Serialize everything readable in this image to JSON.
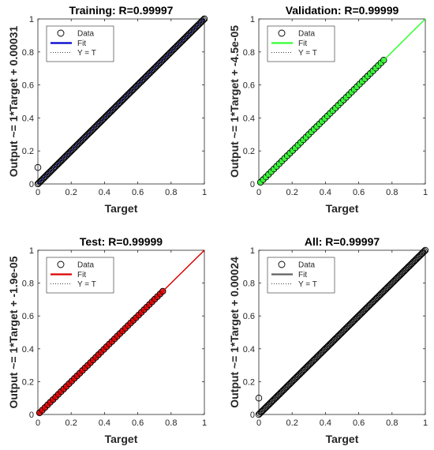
{
  "chart_data": [
    {
      "type": "scatter",
      "title": "Training: R=0.99997",
      "xlabel": "Target",
      "ylabel": "Output ~= 1*Target + 0.00031",
      "xlim": [
        0,
        1
      ],
      "ylim": [
        0,
        1
      ],
      "xticks": [
        "0",
        "0.2",
        "0.4",
        "0.6",
        "0.8",
        "1"
      ],
      "yticks": [
        "0",
        "0.2",
        "0.4",
        "0.6",
        "0.8",
        "1"
      ],
      "fit_color": "#0000cc",
      "marker_fill": "none",
      "fit": {
        "slope": 1,
        "intercept": 0.00031
      },
      "density": "dense",
      "outliers": [
        {
          "x": 0.0,
          "y": 0.1
        }
      ],
      "legend": {
        "position": "top-left",
        "entries": [
          "Data",
          "Fit",
          "Y = T"
        ]
      }
    },
    {
      "type": "scatter",
      "title": "Validation: R=0.99999",
      "xlabel": "Target",
      "ylabel": "Output ~= 1*Target + -4.5e-05",
      "xlim": [
        0,
        1
      ],
      "ylim": [
        0,
        1
      ],
      "xticks": [
        "0",
        "0.2",
        "0.4",
        "0.6",
        "0.8",
        "1"
      ],
      "yticks": [
        "0",
        "0.2",
        "0.4",
        "0.6",
        "0.8",
        "1"
      ],
      "fit_color": "#33ff33",
      "marker_fill": "#33ff33",
      "fit": {
        "slope": 1,
        "intercept": -4.5e-05
      },
      "density": "sparse",
      "outliers": [],
      "legend": {
        "position": "top-left",
        "entries": [
          "Data",
          "Fit",
          "Y = T"
        ]
      }
    },
    {
      "type": "scatter",
      "title": "Test: R=0.99999",
      "xlabel": "Target",
      "ylabel": "Output ~= 1*Target + -1.9e-05",
      "xlim": [
        0,
        1
      ],
      "ylim": [
        0,
        1
      ],
      "xticks": [
        "0",
        "0.2",
        "0.4",
        "0.6",
        "0.8",
        "1"
      ],
      "yticks": [
        "0",
        "0.2",
        "0.4",
        "0.6",
        "0.8",
        "1"
      ],
      "fit_color": "#dd0000",
      "marker_fill": "#dd0000",
      "fit": {
        "slope": 1,
        "intercept": -1.9e-05
      },
      "density": "sparse",
      "outliers": [],
      "legend": {
        "position": "top-left",
        "entries": [
          "Data",
          "Fit",
          "Y = T"
        ]
      }
    },
    {
      "type": "scatter",
      "title": "All: R=0.99997",
      "xlabel": "Target",
      "ylabel": "Output ~= 1*Target + 0.00024",
      "xlim": [
        0,
        1
      ],
      "ylim": [
        0,
        1
      ],
      "xticks": [
        "0",
        "0.2",
        "0.4",
        "0.6",
        "0.8",
        "1"
      ],
      "yticks": [
        "0",
        "0.2",
        "0.4",
        "0.6",
        "0.8",
        "1"
      ],
      "fit_color": "#606060",
      "marker_fill": "none",
      "fit": {
        "slope": 1,
        "intercept": 0.00024
      },
      "density": "dense",
      "outliers": [
        {
          "x": 0.0,
          "y": 0.1
        }
      ],
      "legend": {
        "position": "top-left",
        "entries": [
          "Data",
          "Fit",
          "Y = T"
        ]
      }
    }
  ]
}
